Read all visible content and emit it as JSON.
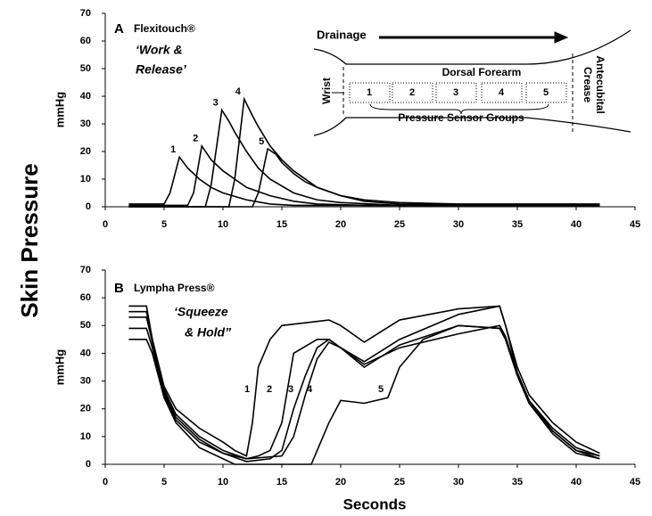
{
  "figure": {
    "ylabel": "Skin Pressure",
    "xlabel": "Seconds"
  },
  "chart_data": [
    {
      "type": "line",
      "label": "A",
      "title": "Flexitouch®",
      "subtitle": [
        "‘Work &",
        "Release’"
      ],
      "ylabel": "mmHg",
      "xlim": [
        0,
        45
      ],
      "xticks": [
        0,
        5,
        10,
        15,
        20,
        25,
        30,
        35,
        40,
        45
      ],
      "ylim": [
        0,
        70
      ],
      "yticks": [
        0,
        10,
        20,
        30,
        40,
        50,
        60,
        70
      ],
      "series": [
        {
          "name": "1",
          "color": "#000000",
          "x": [
            2,
            5,
            5.5,
            6.3,
            7,
            8,
            9,
            10,
            12,
            14,
            16,
            20,
            42
          ],
          "values": [
            1,
            1,
            5,
            18,
            14,
            10,
            7,
            5,
            2.5,
            1,
            0.5,
            0.5,
            0.5
          ]
        },
        {
          "name": "2",
          "color": "#000000",
          "x": [
            2,
            7,
            7.5,
            8.2,
            9,
            10,
            11,
            12,
            14,
            16,
            18,
            22,
            42
          ],
          "values": [
            0.5,
            0.5,
            5,
            22,
            17,
            13,
            10,
            7,
            4,
            2,
            1,
            0.5,
            0.5
          ]
        },
        {
          "name": "3",
          "color": "#000000",
          "x": [
            2,
            8.5,
            9,
            9.9,
            10.5,
            11,
            12,
            13,
            14,
            16,
            18,
            20,
            25,
            42
          ],
          "values": [
            0,
            0,
            8,
            35,
            31,
            27,
            20,
            14,
            10,
            5,
            2.5,
            1.5,
            0.5,
            0.5
          ]
        },
        {
          "name": "4",
          "color": "#000000",
          "x": [
            2,
            10.5,
            11,
            11.8,
            12.5,
            13,
            14,
            15,
            16,
            18,
            20,
            22,
            25,
            42
          ],
          "values": [
            0,
            0,
            10,
            39,
            33,
            29,
            22,
            17,
            13,
            7,
            4,
            2,
            1,
            0.5
          ]
        },
        {
          "name": "5",
          "color": "#000000",
          "x": [
            2,
            12.5,
            13,
            13.8,
            14.5,
            15,
            16,
            17,
            18,
            20,
            22,
            25,
            30,
            42
          ],
          "values": [
            0,
            0,
            5,
            21,
            19,
            16,
            12,
            9,
            7,
            4,
            2.5,
            1.5,
            1,
            1
          ]
        }
      ],
      "inset": {
        "drainage": "Drainage",
        "region": "Dorsal Forearm",
        "wrist": "Wrist",
        "crease": [
          "Antecubital",
          "Crease"
        ],
        "sensors": "Pressure Sensor Groups",
        "groups": [
          "1",
          "2",
          "3",
          "4",
          "5"
        ]
      }
    },
    {
      "type": "line",
      "label": "B",
      "title": "Lympha Press®",
      "subtitle": [
        "‘Squeeze",
        "& Hold”"
      ],
      "ylabel": "mmHg",
      "xlim": [
        0,
        45
      ],
      "xticks": [
        0,
        5,
        10,
        15,
        20,
        25,
        30,
        35,
        40,
        45
      ],
      "ylim": [
        0,
        70
      ],
      "yticks": [
        0,
        10,
        20,
        30,
        40,
        50,
        60,
        70
      ],
      "series": [
        {
          "name": "1",
          "color": "#000000",
          "x": [
            2,
            3.5,
            4,
            5,
            6,
            8,
            10,
            11,
            12,
            12.5,
            13,
            14,
            15,
            17,
            19,
            20,
            22,
            25,
            30,
            33.5,
            34,
            35,
            36,
            38,
            40,
            42
          ],
          "values": [
            57,
            57,
            45,
            28,
            20,
            13,
            8,
            5,
            3,
            15,
            35,
            45,
            50,
            51,
            52,
            50,
            44,
            52,
            56,
            57,
            50,
            35,
            25,
            15,
            8,
            4
          ]
        },
        {
          "name": "2",
          "color": "#000000",
          "x": [
            2,
            3.5,
            4,
            5,
            6,
            8,
            10,
            12,
            13,
            14,
            15,
            16,
            18,
            19,
            20,
            22,
            25,
            30,
            33.5,
            34,
            35,
            36,
            38,
            40,
            42
          ],
          "values": [
            55,
            55,
            45,
            27,
            18,
            10,
            5,
            2,
            3,
            5,
            15,
            40,
            45,
            45,
            42,
            37,
            45,
            54,
            57,
            50,
            33,
            23,
            13,
            6,
            3
          ]
        },
        {
          "name": "3",
          "color": "#000000",
          "x": [
            2,
            3.5,
            4,
            5,
            6,
            8,
            10,
            12,
            14,
            15,
            16,
            17,
            18,
            19,
            20,
            22,
            25,
            30,
            33.5,
            34,
            35,
            36,
            38,
            40,
            42
          ],
          "values": [
            53,
            53,
            44,
            26,
            17,
            9,
            4,
            1,
            2,
            5,
            20,
            32,
            42,
            45,
            42,
            35,
            43,
            50,
            49,
            45,
            32,
            22,
            12,
            5,
            2
          ]
        },
        {
          "name": "4",
          "color": "#000000",
          "x": [
            2,
            3.5,
            4,
            5,
            6,
            8,
            10,
            12,
            15,
            16,
            17,
            18,
            19,
            20,
            22,
            25,
            30,
            33.5,
            34,
            35,
            36,
            38,
            40,
            42
          ],
          "values": [
            49,
            49,
            42,
            25,
            16,
            8,
            4,
            2,
            3,
            10,
            25,
            38,
            44,
            42,
            36,
            42,
            47,
            50,
            46,
            33,
            23,
            12,
            5,
            3
          ]
        },
        {
          "name": "5",
          "color": "#000000",
          "x": [
            2,
            3.5,
            4,
            5,
            6,
            8,
            10,
            11,
            17.5,
            18,
            19,
            20,
            22,
            24,
            25,
            27,
            30,
            33.5,
            34,
            35,
            36,
            38,
            40,
            42
          ],
          "values": [
            45,
            45,
            40,
            24,
            15,
            6,
            2,
            0,
            0,
            5,
            15,
            23,
            22,
            24,
            35,
            45,
            50,
            49,
            45,
            32,
            22,
            11,
            4,
            2
          ]
        }
      ]
    }
  ]
}
